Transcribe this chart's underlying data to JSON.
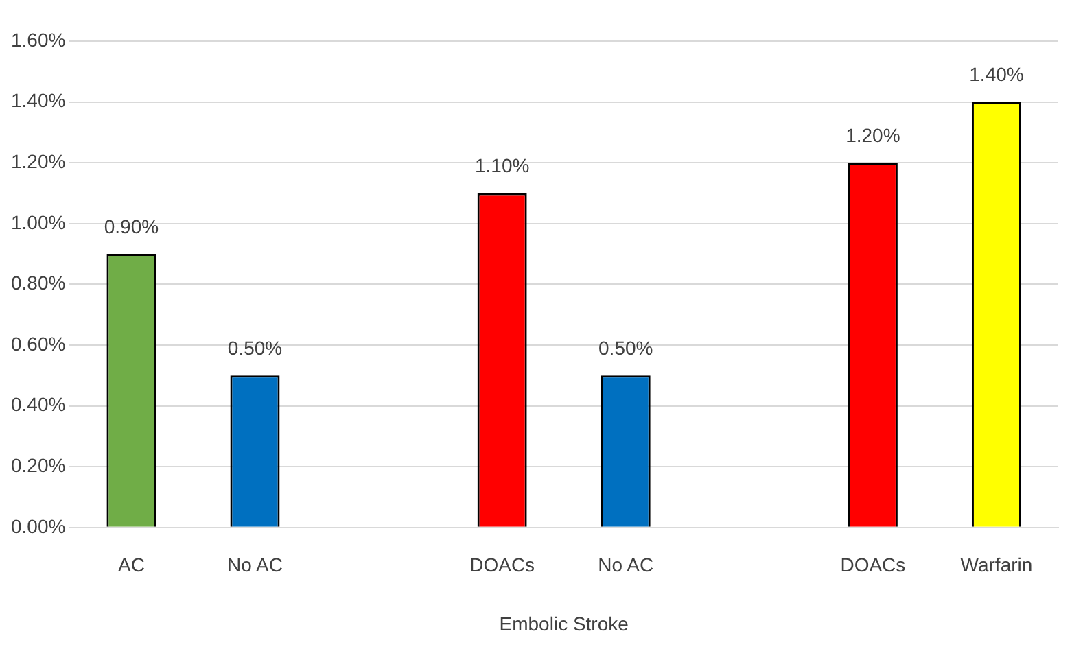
{
  "chart_data": {
    "type": "bar",
    "xlabel": "Embolic Stroke",
    "categories": [
      "AC",
      "No AC",
      null,
      "DOACs",
      "No AC",
      null,
      "DOACs",
      "Warfarin"
    ],
    "values": [
      0.9,
      0.5,
      null,
      1.1,
      0.5,
      null,
      1.2,
      1.4
    ],
    "colors": [
      "#70ad47",
      "#0070c0",
      null,
      "#ff0000",
      "#0070c0",
      null,
      "#ff0000",
      "#ffff00"
    ],
    "value_labels": [
      "0.90%",
      "0.50%",
      null,
      "1.10%",
      "0.50%",
      null,
      "1.20%",
      "1.40%"
    ],
    "ylim": [
      0,
      1.6
    ],
    "yticks": [
      {
        "value": 0,
        "label": "0.00%"
      },
      {
        "value": 0.2,
        "label": "0.20%"
      },
      {
        "value": 0.4,
        "label": "0.40%"
      },
      {
        "value": 0.6,
        "label": "0.60%"
      },
      {
        "value": 0.8,
        "label": "0.80%"
      },
      {
        "value": 1.0,
        "label": "1.00%"
      },
      {
        "value": 1.2,
        "label": "1.20%"
      },
      {
        "value": 1.4,
        "label": "1.40%"
      },
      {
        "value": 1.6,
        "label": "1.60%"
      }
    ],
    "grid": "y"
  }
}
